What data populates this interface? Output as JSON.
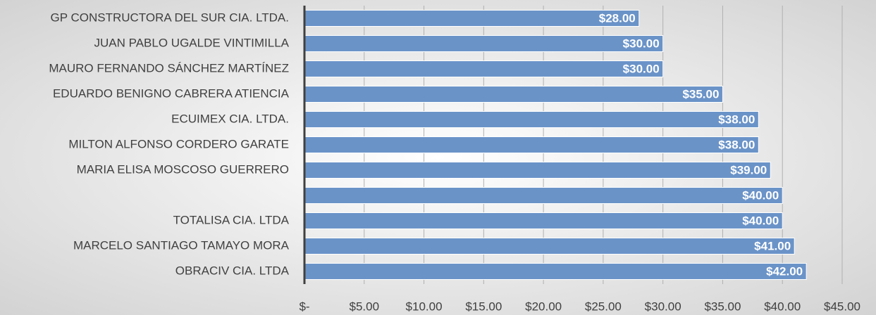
{
  "chart_data": {
    "type": "bar",
    "orientation": "horizontal",
    "categories": [
      "GP CONSTRUCTORA DEL SUR CIA. LTDA.",
      "JUAN PABLO UGALDE VINTIMILLA",
      "MAURO FERNANDO SÁNCHEZ MARTÍNEZ",
      "EDUARDO BENIGNO CABRERA ATIENCIA",
      "ECUIMEX CIA. LTDA.",
      "MILTON ALFONSO CORDERO GARATE",
      "MARIA ELISA MOSCOSO GUERRERO",
      null,
      "TOTALISA CIA. LTDA",
      "MARCELO SANTIAGO TAMAYO MORA",
      "OBRACIV CIA. LTDA"
    ],
    "values": [
      28,
      30,
      30,
      35,
      38,
      38,
      39,
      40,
      40,
      41,
      42
    ],
    "value_labels": [
      "$28.00",
      "$30.00",
      "$30.00",
      "$35.00",
      "$38.00",
      "$38.00",
      "$39.00",
      "$40.00",
      "$40.00",
      "$41.00",
      "$42.00"
    ],
    "color": "#6a93c8",
    "xlim": [
      0,
      45
    ],
    "xticks": [
      {
        "value": 0,
        "label": "$-"
      },
      {
        "value": 5,
        "label": "$5.00"
      },
      {
        "value": 10,
        "label": "$10.00"
      },
      {
        "value": 15,
        "label": "$15.00"
      },
      {
        "value": 20,
        "label": "$20.00"
      },
      {
        "value": 25,
        "label": "$25.00"
      },
      {
        "value": 30,
        "label": "$30.00"
      },
      {
        "value": 35,
        "label": "$35.00"
      },
      {
        "value": 40,
        "label": "$40.00"
      },
      {
        "value": 45,
        "label": "$45.00"
      }
    ],
    "grid": true
  }
}
